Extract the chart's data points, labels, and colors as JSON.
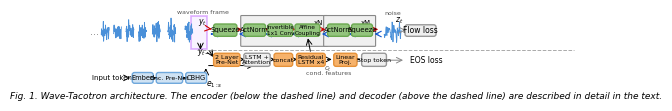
{
  "bg_color": "#ffffff",
  "text_color": "#000000",
  "caption": "Fig. 1. Wave-Tacotron architecture. The encoder (below the dashed line) and decoder (above the dashed line) are described in detail in the text.",
  "caption_fontsize": 6.5,
  "box_green_face": "#93C47D",
  "box_green_edge": "#6AA84F",
  "box_orange_face": "#F6B26B",
  "box_orange_edge": "#E69138",
  "box_gray_face": "#CFE2F3",
  "box_gray_edge": "#6FA8DC",
  "box_light_gray_face": "#EFEFEF",
  "box_light_gray_edge": "#999999",
  "arrow_red": "#CC0000",
  "arrow_blue": "#1155CC",
  "arrow_black": "#000000",
  "waveform_color": "#4A90D9",
  "noise_waveform_color": "#4A90D9"
}
